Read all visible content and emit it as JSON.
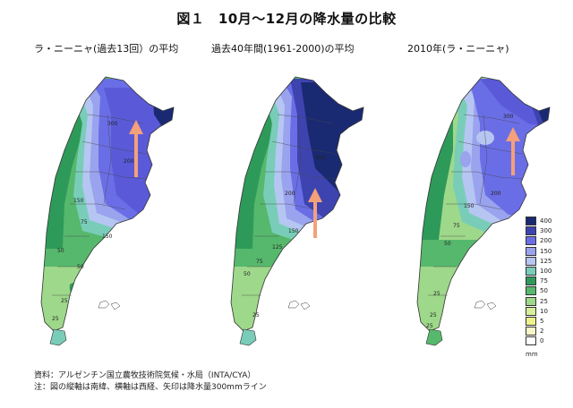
{
  "title": "図１　10月～12月の降水量の比較",
  "panels": [
    {
      "title": "ラ・ニーニャ(過去13回）の平均"
    },
    {
      "title": "過去40年間(1961-2000)の平均"
    },
    {
      "title": "2010年(ラ・ニーニャ)"
    }
  ],
  "legend": {
    "unit": "mm",
    "items": [
      {
        "label": "400",
        "color": "#1a2a72"
      },
      {
        "label": "300",
        "color": "#3d44b0"
      },
      {
        "label": "200",
        "color": "#6a6ee6"
      },
      {
        "label": "150",
        "color": "#9aa3ee"
      },
      {
        "label": "125",
        "color": "#b6c6f2"
      },
      {
        "label": "100",
        "color": "#79cdb8"
      },
      {
        "label": "75",
        "color": "#2e9a5a"
      },
      {
        "label": "50",
        "color": "#56b86c"
      },
      {
        "label": "25",
        "color": "#9ed88a"
      },
      {
        "label": "10",
        "color": "#d8ee9a"
      },
      {
        "label": "5",
        "color": "#eef28a"
      },
      {
        "label": "2",
        "color": "#f6f6c8"
      },
      {
        "label": "0",
        "color": "#ffffff"
      }
    ]
  },
  "notes": {
    "source": "資料：アルゼンチン国立農牧技術院気候・水局（INTA/CYA）",
    "note": "注：図の縦軸は南緯、横軸は西経、矢印は降水量300mmライン"
  }
}
